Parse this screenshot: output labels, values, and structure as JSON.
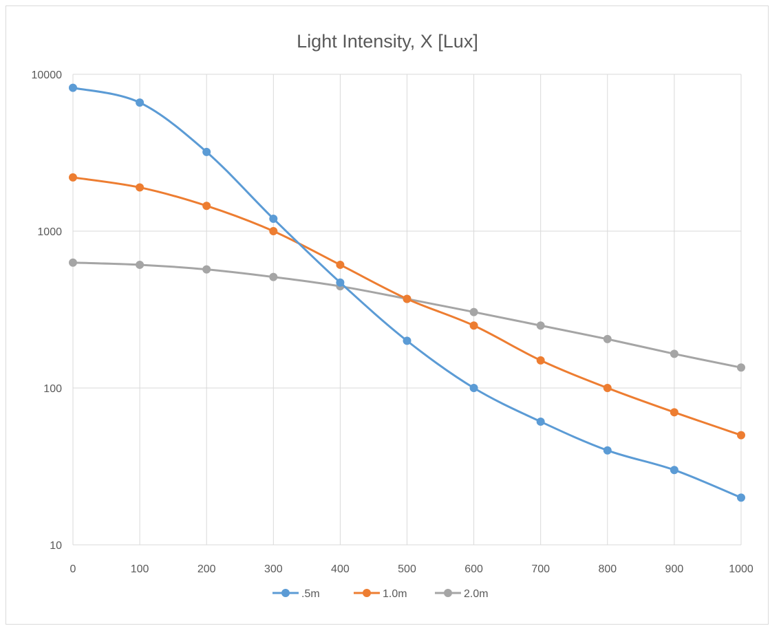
{
  "chart_data": {
    "type": "line",
    "title": "Light Intensity, X [Lux]",
    "xlabel": "",
    "ylabel": "",
    "x": [
      0,
      100,
      200,
      300,
      400,
      500,
      600,
      700,
      800,
      900,
      1000
    ],
    "x_ticks": [
      "0",
      "100",
      "200",
      "300",
      "400",
      "500",
      "600",
      "700",
      "800",
      "900",
      "1000"
    ],
    "xlim": [
      0,
      1000
    ],
    "y_scale": "log",
    "ylim": [
      10,
      10000
    ],
    "y_ticks": [
      10,
      100,
      1000,
      10000
    ],
    "y_tick_labels": [
      "10",
      "100",
      "1000",
      "10000"
    ],
    "grid": true,
    "smooth": true,
    "legend_position": "bottom",
    "series": [
      {
        "name": ".5m",
        "color": "#5b9bd5",
        "values": [
          8200,
          6600,
          3200,
          1200,
          470,
          200,
          100,
          61,
          40,
          30,
          20
        ]
      },
      {
        "name": "1.0m",
        "color": "#ed7d31",
        "values": [
          2200,
          1900,
          1450,
          1000,
          610,
          370,
          250,
          150,
          100,
          70,
          50
        ]
      },
      {
        "name": "2.0m",
        "color": "#a5a5a5",
        "values": [
          630,
          610,
          570,
          510,
          445,
          370,
          305,
          250,
          205,
          165,
          135
        ]
      }
    ]
  }
}
